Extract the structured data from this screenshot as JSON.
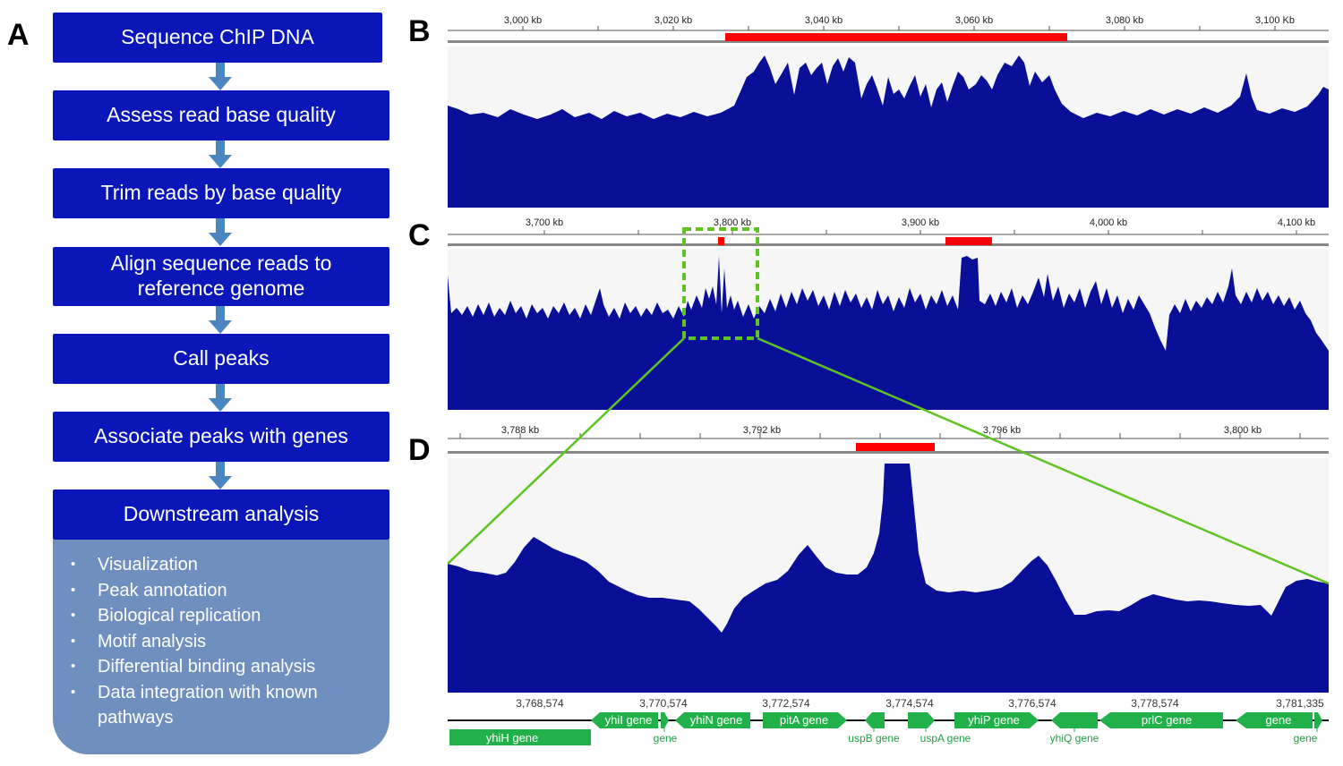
{
  "panels": {
    "a": "A",
    "b": "B",
    "c": "C",
    "d": "D"
  },
  "workflow": {
    "steps": [
      "Sequence ChIP DNA",
      "Assess read base quality",
      "Trim reads by base quality",
      "Align sequence reads to reference genome",
      "Call peaks",
      "Associate peaks with genes",
      "Downstream analysis"
    ],
    "downstream_items": [
      "Visualization",
      "Peak annotation",
      "Biological replication",
      "Motif analysis",
      "Differential binding analysis",
      "Data integration with known pathways"
    ]
  },
  "tracks": {
    "b": {
      "ticks": [
        "3,000 kb",
        "3,020 kb",
        "3,040 kb",
        "3,060 kb",
        "3,080 kb",
        "3,100 Kb"
      ]
    },
    "c": {
      "ticks": [
        "3,700 kb",
        "3,800 kb",
        "3,900 kb",
        "4,000 kb",
        "4,100 kb"
      ]
    },
    "d": {
      "ticks": [
        "3,788 kb",
        "3,792 kb",
        "3,796 kb",
        "3,800 kb"
      ]
    }
  },
  "genes": {
    "coords": [
      "3,768,574",
      "3,770,574",
      "3,772,574",
      "3,774,574",
      "3,776,574",
      "3,778,574",
      "3,781,335"
    ],
    "labels": [
      "yhiH gene",
      "yhiI gene",
      "yhiN gene",
      "pitA gene",
      "yhiP gene",
      "prlC gene",
      "gene"
    ],
    "below_labels": [
      "gene",
      "uspB gene",
      "uspA gene",
      "yhiQ gene",
      "gene"
    ]
  },
  "colors": {
    "box": "#0a16b8",
    "arrow": "#4a86c0",
    "bullets_bg": "#6f8fbe",
    "coverage": "#0a0f98",
    "peak": "#ff0000",
    "zoom": "#5ec424",
    "gene": "#22b04b"
  }
}
